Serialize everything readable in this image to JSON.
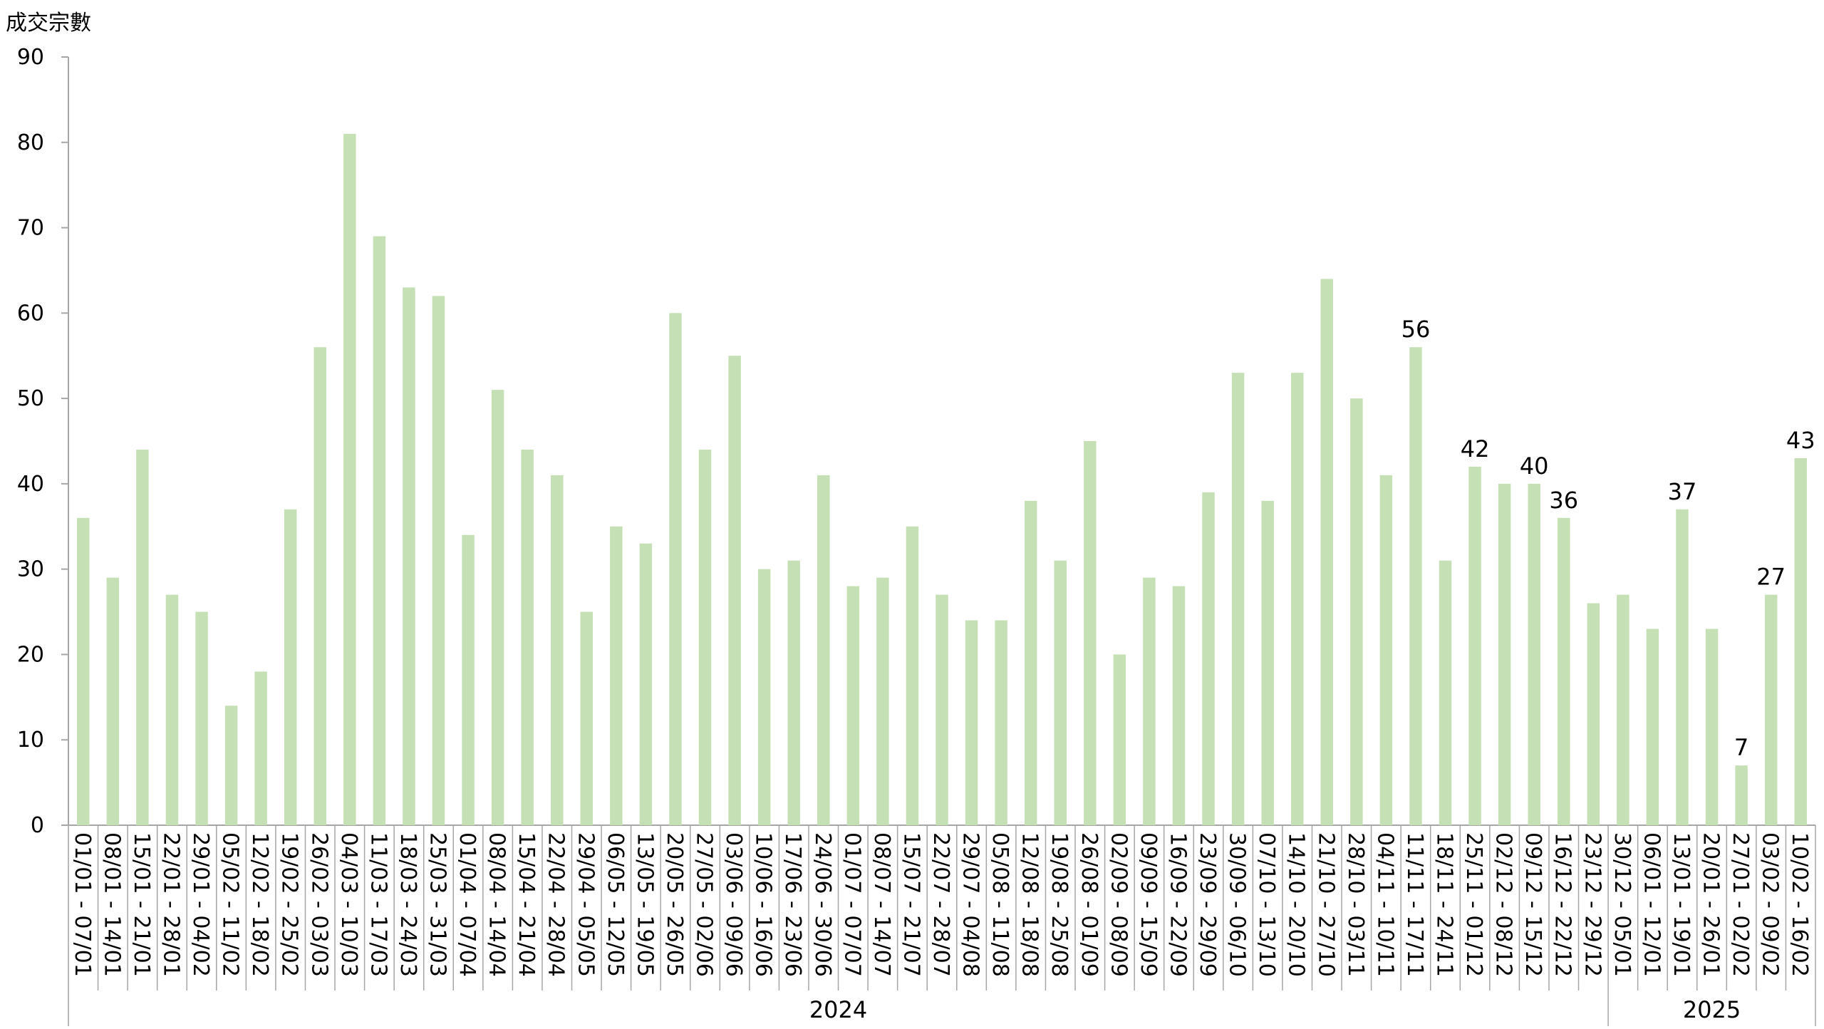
{
  "chart_data": {
    "type": "bar",
    "ylabel": "成交宗數",
    "xlabel": "",
    "ylim": [
      0,
      90
    ],
    "yticks": [
      0,
      10,
      20,
      30,
      40,
      50,
      60,
      70,
      80,
      90
    ],
    "grid": false,
    "bar_color": "#c5e0b4",
    "axis_color": "#a6a6a6",
    "categories": [
      "01/01 - 07/01",
      "08/01 - 14/01",
      "15/01 - 21/01",
      "22/01 - 28/01",
      "29/01 - 04/02",
      "05/02 - 11/02",
      "12/02 - 18/02",
      "19/02 - 25/02",
      "26/02 - 03/03",
      "04/03 - 10/03",
      "11/03 - 17/03",
      "18/03 - 24/03",
      "25/03 - 31/03",
      "01/04 - 07/04",
      "08/04 - 14/04",
      "15/04 - 21/04",
      "22/04 - 28/04",
      "29/04 - 05/05",
      "06/05 - 12/05",
      "13/05 - 19/05",
      "20/05 - 26/05",
      "27/05 - 02/06",
      "03/06 - 09/06",
      "10/06 - 16/06",
      "17/06 - 23/06",
      "24/06 - 30/06",
      "01/07 - 07/07",
      "08/07 - 14/07",
      "15/07 - 21/07",
      "22/07 - 28/07",
      "29/07 - 04/08",
      "05/08 - 11/08",
      "12/08 - 18/08",
      "19/08 - 25/08",
      "26/08 - 01/09",
      "02/09 - 08/09",
      "09/09 - 15/09",
      "16/09 - 22/09",
      "23/09 - 29/09",
      "30/09 - 06/10",
      "07/10 - 13/10",
      "14/10 - 20/10",
      "21/10 - 27/10",
      "28/10 - 03/11",
      "04/11 - 10/11",
      "11/11 - 17/11",
      "18/11 - 24/11",
      "25/11 - 01/12",
      "02/12 - 08/12",
      "09/12 - 15/12",
      "16/12 - 22/12",
      "23/12 - 29/12",
      "30/12 - 05/01",
      "06/01 - 12/01",
      "13/01 - 19/01",
      "20/01 - 26/01",
      "27/01 - 02/02",
      "03/02 - 09/02",
      "10/02 - 16/02"
    ],
    "values": [
      36,
      29,
      44,
      27,
      25,
      14,
      18,
      37,
      56,
      81,
      69,
      63,
      62,
      34,
      51,
      44,
      41,
      25,
      35,
      33,
      60,
      44,
      55,
      30,
      31,
      41,
      28,
      29,
      35,
      27,
      24,
      24,
      38,
      31,
      45,
      20,
      29,
      28,
      39,
      53,
      38,
      53,
      64,
      50,
      41,
      56,
      31,
      42,
      40,
      40,
      36,
      26,
      27,
      23,
      37,
      23,
      7,
      27,
      43
    ],
    "data_labels": [
      {
        "index": 45,
        "text": "56"
      },
      {
        "index": 47,
        "text": "42"
      },
      {
        "index": 49,
        "text": "40"
      },
      {
        "index": 50,
        "text": "36"
      },
      {
        "index": 54,
        "text": "37"
      },
      {
        "index": 56,
        "text": "7"
      },
      {
        "index": 57,
        "text": "27"
      },
      {
        "index": 58,
        "text": "43"
      }
    ],
    "year_groups": [
      {
        "label": "2024",
        "start": 0,
        "end": 51
      },
      {
        "label": "2025",
        "start": 52,
        "end": 58
      }
    ]
  }
}
